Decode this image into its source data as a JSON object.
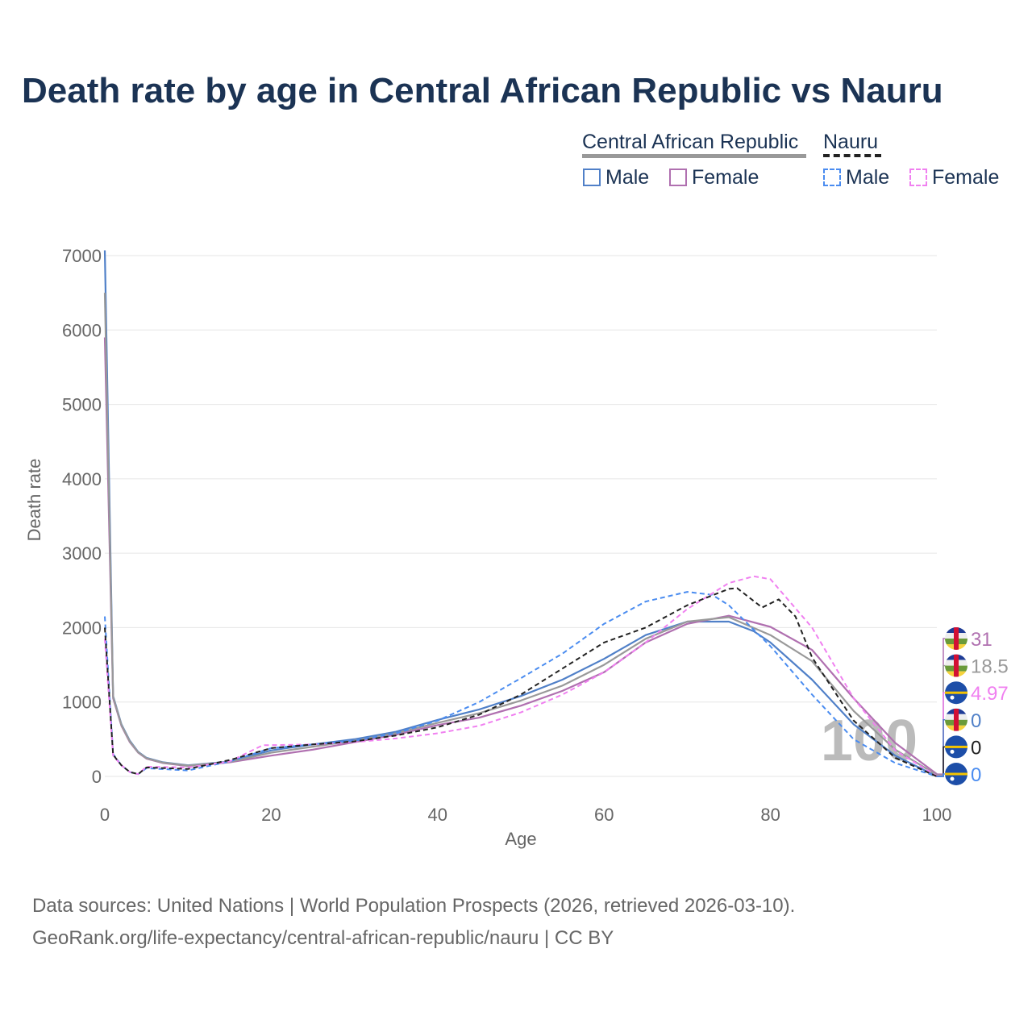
{
  "title": "Death rate by age in Central African Republic vs Nauru",
  "legend": {
    "groups": [
      {
        "name": "Central African Republic",
        "line": "solid",
        "color": "#999999",
        "items": [
          {
            "label": "Male",
            "color": "#5080c8"
          },
          {
            "label": "Female",
            "color": "#b070b0"
          }
        ]
      },
      {
        "name": "Nauru",
        "line": "dashed",
        "color": "#222222",
        "items": [
          {
            "label": "Male",
            "color": "#4a8cf0"
          },
          {
            "label": "Female",
            "color": "#f080f0"
          }
        ]
      }
    ]
  },
  "footer": [
    "Data sources: United Nations | World Population Prospects (2026, retrieved 2026-03-10).",
    "GeoRank.org/life-expectancy/central-african-republic/nauru | CC BY"
  ],
  "chart_data": {
    "type": "line",
    "title": "Death rate by age in Central African Republic vs Nauru",
    "xlabel": "Age",
    "ylabel": "Death rate",
    "xlim": [
      0,
      100
    ],
    "ylim": [
      0,
      7000
    ],
    "xticks": [
      0,
      20,
      40,
      60,
      80,
      100
    ],
    "yticks": [
      0,
      1000,
      2000,
      3000,
      4000,
      5000,
      6000,
      7000
    ],
    "grid": true,
    "hover_age_label": "100",
    "series": [
      {
        "name": "Central African Republic Male",
        "color": "#5080c8",
        "dash": false,
        "end_label": "0",
        "flag": "car",
        "x": [
          0,
          1,
          2,
          3,
          4,
          5,
          7,
          10,
          15,
          20,
          25,
          30,
          35,
          40,
          45,
          50,
          55,
          60,
          65,
          70,
          75,
          78,
          80,
          85,
          90,
          95,
          100
        ],
        "y": [
          7070,
          1080,
          700,
          480,
          330,
          250,
          190,
          150,
          200,
          350,
          430,
          500,
          600,
          760,
          900,
          1080,
          1300,
          1580,
          1900,
          2080,
          2080,
          1950,
          1800,
          1300,
          700,
          280,
          0
        ]
      },
      {
        "name": "Central African Republic Female",
        "color": "#b070b0",
        "dash": false,
        "end_label": "31",
        "flag": "car",
        "x": [
          0,
          1,
          2,
          3,
          4,
          5,
          7,
          10,
          15,
          20,
          25,
          30,
          35,
          40,
          45,
          50,
          55,
          60,
          65,
          70,
          75,
          80,
          85,
          90,
          95,
          100
        ],
        "y": [
          5900,
          1050,
          680,
          460,
          320,
          240,
          180,
          140,
          190,
          280,
          360,
          460,
          560,
          690,
          790,
          950,
          1150,
          1400,
          1800,
          2050,
          2160,
          2010,
          1700,
          1050,
          450,
          31
        ]
      },
      {
        "name": "Central African Republic",
        "color": "#999999",
        "dash": false,
        "end_label": "18.5",
        "flag": "car",
        "x": [
          0,
          1,
          2,
          3,
          4,
          5,
          7,
          10,
          15,
          20,
          25,
          30,
          35,
          40,
          45,
          50,
          55,
          60,
          65,
          70,
          75,
          80,
          85,
          90,
          95,
          100
        ],
        "y": [
          6500,
          1070,
          690,
          470,
          325,
          245,
          185,
          145,
          195,
          320,
          400,
          480,
          580,
          720,
          850,
          1020,
          1220,
          1500,
          1850,
          2080,
          2140,
          1900,
          1550,
          880,
          360,
          18.5
        ]
      },
      {
        "name": "Nauru Male",
        "color": "#4a8cf0",
        "dash": true,
        "end_label": "0",
        "flag": "nauru",
        "x": [
          0,
          1,
          2,
          3,
          4,
          5,
          10,
          15,
          20,
          25,
          30,
          35,
          40,
          45,
          50,
          55,
          60,
          65,
          70,
          73,
          75,
          80,
          85,
          90,
          95,
          100
        ],
        "y": [
          2150,
          300,
          150,
          60,
          30,
          110,
          80,
          200,
          380,
          430,
          480,
          580,
          750,
          1000,
          1320,
          1650,
          2050,
          2350,
          2480,
          2440,
          2300,
          1750,
          1100,
          500,
          180,
          0
        ]
      },
      {
        "name": "Nauru Female",
        "color": "#f080f0",
        "dash": true,
        "end_label": "4.97",
        "flag": "nauru",
        "x": [
          0,
          1,
          2,
          3,
          4,
          5,
          10,
          15,
          19,
          20,
          25,
          30,
          35,
          40,
          45,
          50,
          55,
          60,
          65,
          70,
          75,
          78,
          80,
          85,
          90,
          95,
          100
        ],
        "y": [
          1850,
          280,
          150,
          60,
          30,
          130,
          120,
          200,
          420,
          420,
          430,
          460,
          510,
          580,
          680,
          860,
          1100,
          1400,
          1800,
          2250,
          2600,
          2690,
          2650,
          2000,
          1050,
          350,
          4.97
        ]
      },
      {
        "name": "Nauru",
        "color": "#222222",
        "dash": true,
        "end_label": "0",
        "flag": "nauru",
        "x": [
          0,
          1,
          2,
          3,
          4,
          5,
          10,
          15,
          20,
          25,
          30,
          35,
          40,
          45,
          50,
          55,
          60,
          65,
          70,
          75,
          76,
          79,
          81,
          83,
          85,
          90,
          95,
          100
        ],
        "y": [
          2000,
          290,
          150,
          60,
          30,
          120,
          100,
          220,
          380,
          430,
          470,
          550,
          660,
          830,
          1100,
          1450,
          1800,
          2000,
          2300,
          2520,
          2530,
          2270,
          2380,
          2150,
          1600,
          750,
          250,
          0
        ]
      }
    ]
  }
}
